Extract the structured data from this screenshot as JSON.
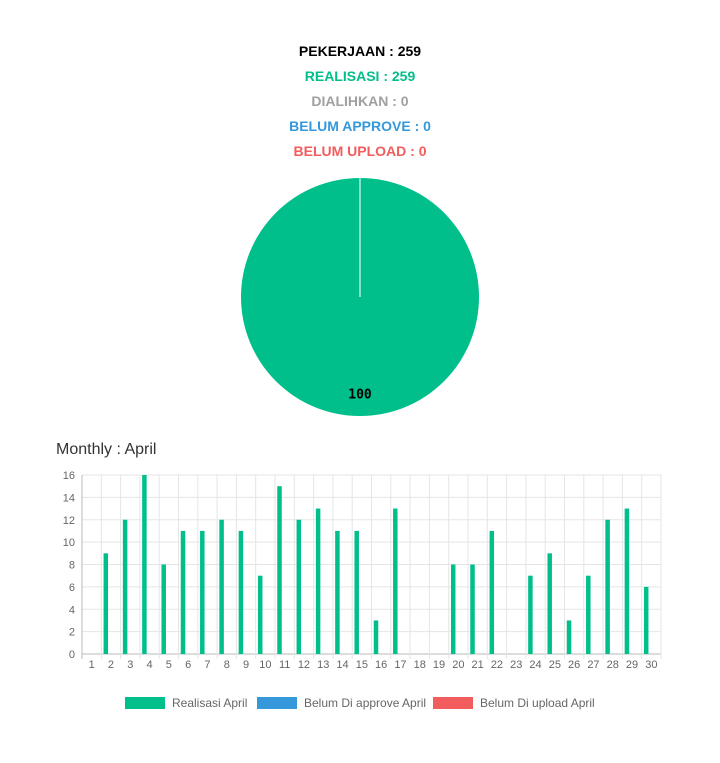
{
  "summary": {
    "pekerjaan": "PEKERJAAN : 259",
    "realisasi": "REALISASI : 259",
    "dialihkan": "DIALIHKAN : 0",
    "belum_approve": "BELUM APPROVE : 0",
    "belum_upload": "BELUM UPLOAD : 0"
  },
  "colors": {
    "pekerjaan": "#000000",
    "realisasi": "#00BF8A",
    "dialihkan": "#A0A0A0",
    "belum_approve": "#3498DB",
    "belum_upload": "#F25C5C"
  },
  "chart_data": [
    {
      "type": "pie",
      "slices": [
        {
          "value": 100,
          "color": "#00BF8A",
          "label": "100"
        }
      ]
    },
    {
      "type": "bar",
      "title": "Monthly : April",
      "categories": [
        "1",
        "2",
        "3",
        "4",
        "5",
        "6",
        "7",
        "8",
        "9",
        "10",
        "11",
        "12",
        "13",
        "14",
        "15",
        "16",
        "17",
        "18",
        "19",
        "20",
        "21",
        "22",
        "23",
        "24",
        "25",
        "26",
        "27",
        "28",
        "29",
        "30"
      ],
      "ylim": [
        0,
        16
      ],
      "yticks": [
        0,
        2,
        4,
        6,
        8,
        10,
        12,
        14,
        16
      ],
      "grid": true,
      "legend_position": "bottom",
      "series": [
        {
          "name": "Realisasi April",
          "color": "#00BF8A",
          "values": [
            0,
            9,
            12,
            16,
            8,
            11,
            11,
            12,
            11,
            7,
            15,
            12,
            13,
            11,
            11,
            3,
            13,
            0,
            0,
            8,
            8,
            11,
            0,
            7,
            9,
            3,
            7,
            12,
            13,
            6
          ]
        },
        {
          "name": "Belum Di approve April",
          "color": "#3498DB",
          "values": [
            0,
            0,
            0,
            0,
            0,
            0,
            0,
            0,
            0,
            0,
            0,
            0,
            0,
            0,
            0,
            0,
            0,
            0,
            0,
            0,
            0,
            0,
            0,
            0,
            0,
            0,
            0,
            0,
            0,
            0
          ]
        },
        {
          "name": "Belum Di upload April",
          "color": "#F25C5C",
          "values": [
            0,
            0,
            0,
            0,
            0,
            0,
            0,
            0,
            0,
            0,
            0,
            0,
            0,
            0,
            0,
            0,
            0,
            0,
            0,
            0,
            0,
            0,
            0,
            0,
            0,
            0,
            0,
            0,
            0,
            0
          ]
        }
      ]
    }
  ]
}
